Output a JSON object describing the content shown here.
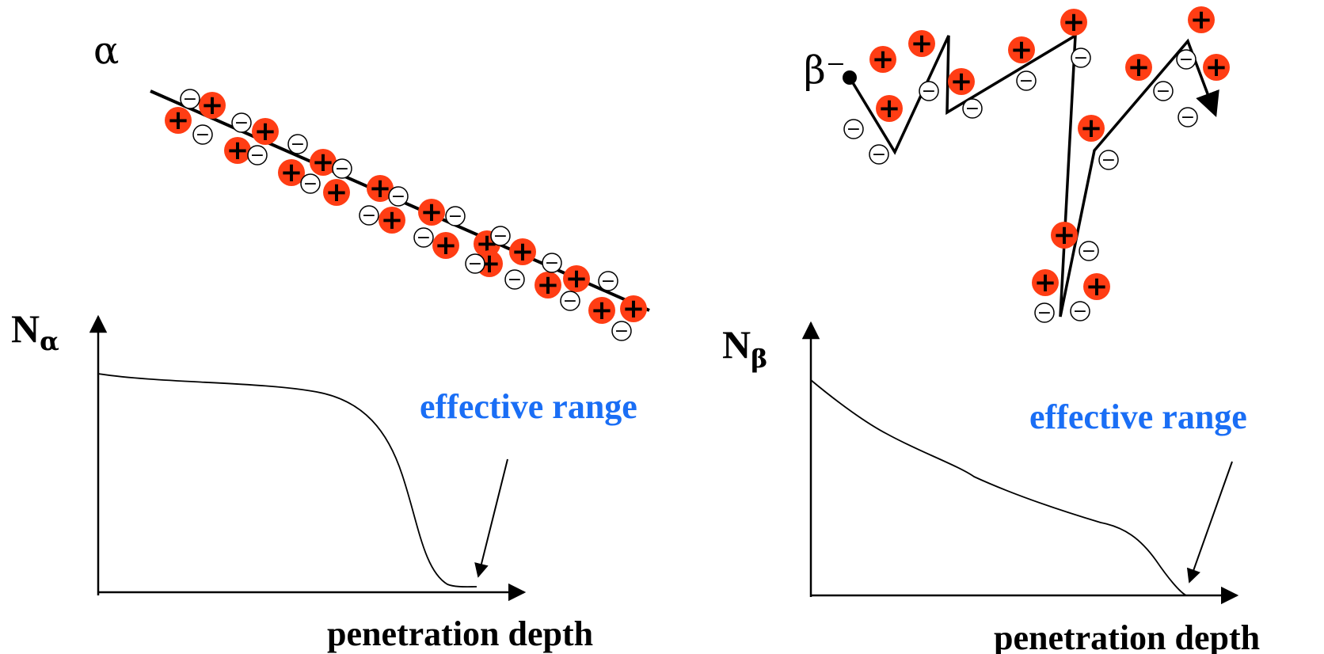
{
  "colors": {
    "positive_ion": "#ff3d14",
    "range_label": "#1a6ef5",
    "ink": "#000000"
  },
  "alpha_panel": {
    "particle_label": "α",
    "y_axis_label": "N",
    "y_axis_subscript": "α",
    "annotation": "effective range",
    "x_axis_label": "penetration depth"
  },
  "beta_panel": {
    "particle_label": "β⁻",
    "y_axis_label": "N",
    "y_axis_subscript": "β",
    "annotation": "effective range",
    "x_axis_label": "penetration depth"
  },
  "ion_symbols": {
    "positive": "+",
    "negative": "−"
  }
}
